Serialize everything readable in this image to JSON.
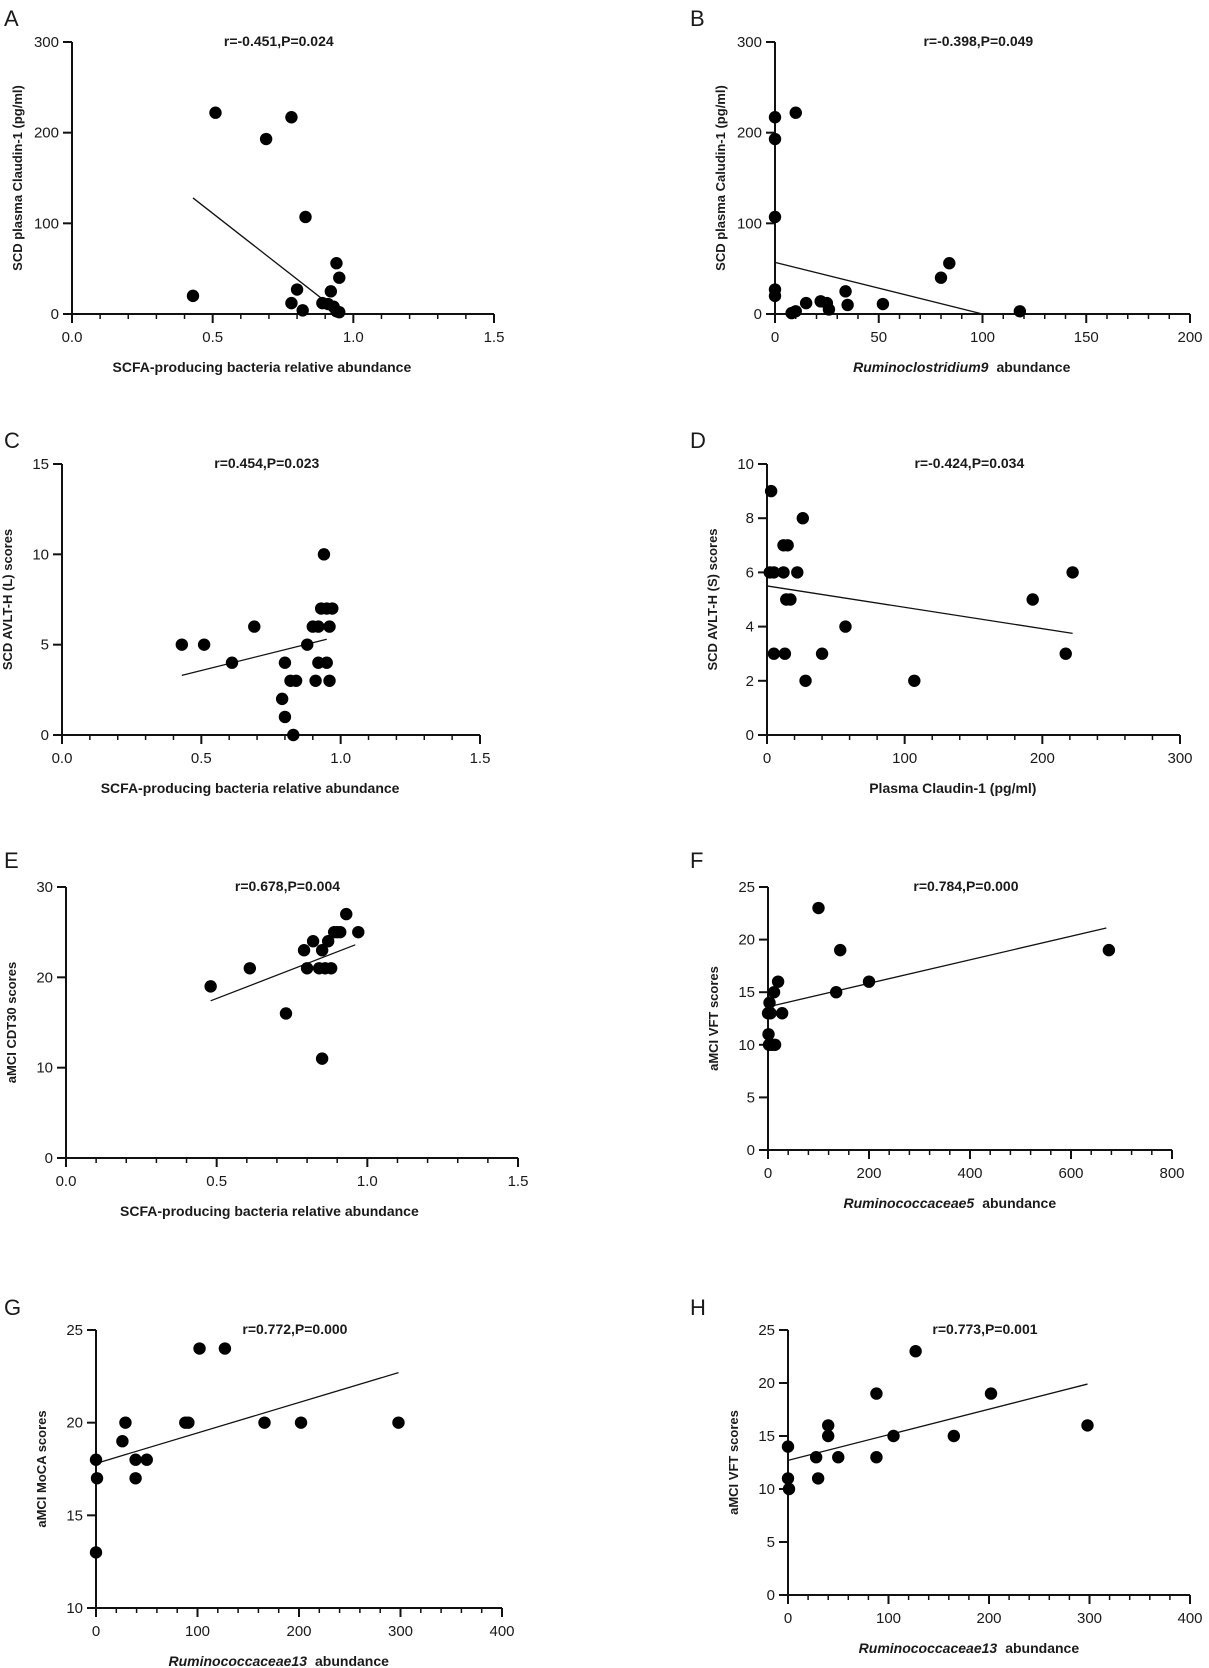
{
  "chart_data": [
    {
      "type": "scatter",
      "panel": "A",
      "title": "r=-0.451,P=0.024",
      "xlabel": "SCFA-producing bacteria relative abundance",
      "ylabel": "SCD plasma Claudin-1 (pg/ml)",
      "xlim": [
        0,
        1.5
      ],
      "ylim": [
        0,
        300
      ],
      "xticks": [
        "0.0",
        "0.5",
        "1.0",
        "1.5"
      ],
      "yticks": [
        "0",
        "100",
        "200",
        "300"
      ],
      "fit": [
        [
          0.43,
          128
        ],
        [
          0.95,
          2
        ]
      ],
      "points": [
        [
          0.51,
          222
        ],
        [
          0.78,
          217
        ],
        [
          0.69,
          193
        ],
        [
          0.83,
          107
        ],
        [
          0.43,
          20
        ],
        [
          0.94,
          56
        ],
        [
          0.95,
          40
        ],
        [
          0.8,
          27
        ],
        [
          0.92,
          25
        ],
        [
          0.78,
          12
        ],
        [
          0.89,
          12
        ],
        [
          0.91,
          11
        ],
        [
          0.93,
          8
        ],
        [
          0.82,
          4
        ],
        [
          0.94,
          3
        ],
        [
          0.95,
          2
        ]
      ]
    },
    {
      "type": "scatter",
      "panel": "B",
      "title": "r=-0.398,P=0.049",
      "xlabel_italic": "Ruminoclostridium9",
      "xlabel_rest": "abundance",
      "ylabel": "SCD plasma Caludin-1 (pg/ml)",
      "xlim": [
        0,
        200
      ],
      "ylim": [
        0,
        300
      ],
      "xticks": [
        "0",
        "50",
        "100",
        "150",
        "200"
      ],
      "yticks": [
        "0",
        "100",
        "200",
        "300"
      ],
      "fit": [
        [
          0,
          57
        ],
        [
          100,
          0
        ]
      ],
      "points": [
        [
          0,
          217
        ],
        [
          10,
          222
        ],
        [
          0,
          193
        ],
        [
          0,
          107
        ],
        [
          0,
          27
        ],
        [
          0,
          20
        ],
        [
          8,
          1
        ],
        [
          10,
          3
        ],
        [
          15,
          12
        ],
        [
          22,
          14
        ],
        [
          25,
          12
        ],
        [
          26,
          5
        ],
        [
          34,
          25
        ],
        [
          35,
          10
        ],
        [
          52,
          11
        ],
        [
          80,
          40
        ],
        [
          84,
          56
        ],
        [
          118,
          3
        ]
      ]
    },
    {
      "type": "scatter",
      "panel": "C",
      "title": "r=0.454,P=0.023",
      "xlabel": "SCFA-producing bacteria relative abundance",
      "ylabel": "SCD AVLT-H (L) scores",
      "xlim": [
        0,
        1.5
      ],
      "ylim": [
        0,
        15
      ],
      "xticks": [
        "0.0",
        "0.5",
        "1.0",
        "1.5"
      ],
      "yticks": [
        "0",
        "5",
        "10",
        "15"
      ],
      "fit": [
        [
          0.43,
          3.3
        ],
        [
          0.95,
          5.3
        ]
      ],
      "points": [
        [
          0.43,
          5
        ],
        [
          0.51,
          5
        ],
        [
          0.61,
          4
        ],
        [
          0.69,
          6
        ],
        [
          0.79,
          2
        ],
        [
          0.8,
          1
        ],
        [
          0.8,
          4
        ],
        [
          0.82,
          3
        ],
        [
          0.83,
          0
        ],
        [
          0.84,
          3
        ],
        [
          0.88,
          5
        ],
        [
          0.9,
          6
        ],
        [
          0.91,
          3
        ],
        [
          0.92,
          4
        ],
        [
          0.92,
          6
        ],
        [
          0.93,
          7
        ],
        [
          0.94,
          10
        ],
        [
          0.95,
          4
        ],
        [
          0.95,
          7
        ],
        [
          0.96,
          3
        ],
        [
          0.96,
          6
        ],
        [
          0.97,
          7
        ]
      ]
    },
    {
      "type": "scatter",
      "panel": "D",
      "title": "r=-0.424,P=0.034",
      "xlabel": "Plasma Claudin-1 (pg/ml)",
      "ylabel": "SCD AVLT-H (S) scores",
      "xlim": [
        0,
        300
      ],
      "ylim": [
        0,
        10
      ],
      "xticks": [
        "0",
        "100",
        "200",
        "300"
      ],
      "yticks": [
        "0",
        "2",
        "4",
        "6",
        "8",
        "10"
      ],
      "fit": [
        [
          0,
          5.5
        ],
        [
          222,
          3.75
        ]
      ],
      "points": [
        [
          3,
          9
        ],
        [
          2,
          6
        ],
        [
          5,
          6
        ],
        [
          5,
          3
        ],
        [
          12,
          6
        ],
        [
          12,
          7
        ],
        [
          13,
          3
        ],
        [
          14,
          5
        ],
        [
          15,
          7
        ],
        [
          17,
          5
        ],
        [
          22,
          6
        ],
        [
          26,
          8
        ],
        [
          28,
          2
        ],
        [
          40,
          3
        ],
        [
          57,
          4
        ],
        [
          107,
          2
        ],
        [
          193,
          5
        ],
        [
          217,
          3
        ],
        [
          222,
          6
        ]
      ]
    },
    {
      "type": "scatter",
      "panel": "E",
      "title": "r=0.678,P=0.004",
      "xlabel": "SCFA-producing bacteria relative abundance",
      "ylabel": "aMCI CDT30 scores",
      "xlim": [
        0,
        1.5
      ],
      "ylim": [
        0,
        30
      ],
      "xticks": [
        "0.0",
        "0.5",
        "1.0",
        "1.5"
      ],
      "yticks": [
        "0",
        "10",
        "20",
        "30"
      ],
      "fit": [
        [
          0.48,
          17.4
        ],
        [
          0.96,
          23.6
        ]
      ],
      "points": [
        [
          0.48,
          19
        ],
        [
          0.61,
          21
        ],
        [
          0.73,
          16
        ],
        [
          0.79,
          23
        ],
        [
          0.8,
          21
        ],
        [
          0.82,
          24
        ],
        [
          0.84,
          21
        ],
        [
          0.85,
          11
        ],
        [
          0.85,
          23
        ],
        [
          0.86,
          21
        ],
        [
          0.87,
          24
        ],
        [
          0.88,
          21
        ],
        [
          0.89,
          25
        ],
        [
          0.9,
          25
        ],
        [
          0.91,
          25
        ],
        [
          0.93,
          27
        ],
        [
          0.97,
          25
        ]
      ]
    },
    {
      "type": "scatter",
      "panel": "F",
      "title": "r=0.784,P=0.000",
      "xlabel_italic": "Ruminococcaceae5",
      "xlabel_rest": "abundance",
      "ylabel": "aMCI VFT scores",
      "xlim": [
        0,
        800
      ],
      "ylim": [
        0,
        25
      ],
      "xticks": [
        "0",
        "200",
        "400",
        "600",
        "800"
      ],
      "yticks": [
        "0",
        "5",
        "10",
        "15",
        "20",
        "25"
      ],
      "fit": [
        [
          0,
          13.6
        ],
        [
          670,
          21.1
        ]
      ],
      "points": [
        [
          100,
          23
        ],
        [
          143,
          19
        ],
        [
          675,
          19
        ],
        [
          200,
          16
        ],
        [
          135,
          15
        ],
        [
          20,
          16
        ],
        [
          12,
          15
        ],
        [
          3,
          14
        ],
        [
          0,
          13
        ],
        [
          5,
          13
        ],
        [
          28,
          13
        ],
        [
          1,
          11
        ],
        [
          2,
          10
        ],
        [
          8,
          10
        ],
        [
          14,
          10
        ]
      ]
    },
    {
      "type": "scatter",
      "panel": "G",
      "title": "r=0.772,P=0.000",
      "xlabel_italic": "Ruminococcaceae13",
      "xlabel_rest": "abundance",
      "ylabel": "aMCI MoCA scores",
      "xlim": [
        0,
        400
      ],
      "ylim": [
        10,
        25
      ],
      "xticks": [
        "0",
        "100",
        "200",
        "300",
        "400"
      ],
      "yticks": [
        "10",
        "15",
        "20",
        "25"
      ],
      "fit": [
        [
          0,
          17.8
        ],
        [
          298,
          22.7
        ]
      ],
      "points": [
        [
          102,
          24
        ],
        [
          127,
          24
        ],
        [
          29,
          20
        ],
        [
          88,
          20
        ],
        [
          91,
          20
        ],
        [
          166,
          20
        ],
        [
          202,
          20
        ],
        [
          298,
          20
        ],
        [
          26,
          19
        ],
        [
          0,
          18
        ],
        [
          39,
          18
        ],
        [
          50,
          18
        ],
        [
          1,
          17
        ],
        [
          39,
          17
        ],
        [
          0,
          13
        ]
      ]
    },
    {
      "type": "scatter",
      "panel": "H",
      "title": "r=0.773,P=0.001",
      "xlabel_italic": "Ruminococcaceae13",
      "xlabel_rest": "abundance",
      "ylabel": "aMCI VFT scores",
      "xlim": [
        0,
        400
      ],
      "ylim": [
        0,
        25
      ],
      "xticks": [
        "0",
        "100",
        "200",
        "300",
        "400"
      ],
      "yticks": [
        "0",
        "5",
        "10",
        "15",
        "20",
        "25"
      ],
      "fit": [
        [
          0,
          12.7
        ],
        [
          298,
          19.9
        ]
      ],
      "points": [
        [
          127,
          23
        ],
        [
          88,
          19
        ],
        [
          202,
          19
        ],
        [
          40,
          16
        ],
        [
          298,
          16
        ],
        [
          40,
          15
        ],
        [
          105,
          15
        ],
        [
          165,
          15
        ],
        [
          0,
          14
        ],
        [
          28,
          13
        ],
        [
          50,
          13
        ],
        [
          88,
          13
        ],
        [
          0,
          11
        ],
        [
          30,
          11
        ],
        [
          1,
          10
        ]
      ]
    }
  ]
}
